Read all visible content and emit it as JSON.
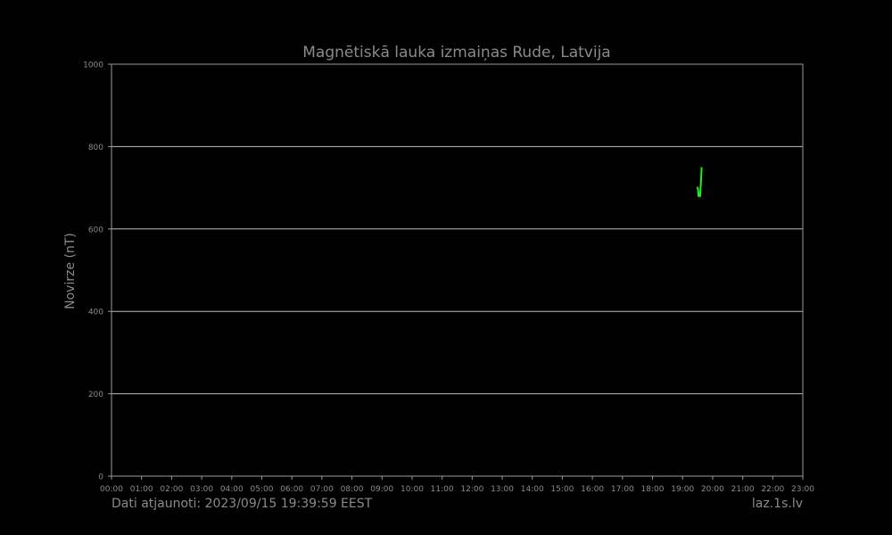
{
  "chart_data": {
    "type": "line",
    "title": "Magnētiskā lauka izmaiņas Rude, Latvija",
    "ylabel": "Novirze (nT)",
    "xlabel": "",
    "ylim": [
      0,
      1000
    ],
    "y_ticks": [
      0,
      200,
      400,
      600,
      800,
      1000
    ],
    "x_tick_labels": [
      "00:00",
      "01:00",
      "02:00",
      "03:00",
      "04:00",
      "05:00",
      "06:00",
      "07:00",
      "08:00",
      "09:00",
      "10:00",
      "11:00",
      "12:00",
      "13:00",
      "14:00",
      "15:00",
      "16:00",
      "17:00",
      "18:00",
      "19:00",
      "20:00",
      "21:00",
      "22:00",
      "23:00"
    ],
    "grid": "horizontal",
    "series": [
      {
        "color": "#22ee22",
        "x": [
          "19:28",
          "19:30",
          "19:31",
          "19:32",
          "19:32",
          "19:33",
          "19:34",
          "19:35",
          "19:36",
          "19:36",
          "19:37",
          "19:38",
          "19:39"
        ],
        "y": [
          700,
          700,
          695,
          680,
          680,
          680,
          680,
          680,
          700,
          700,
          720,
          748,
          748
        ]
      }
    ]
  },
  "footer": {
    "updated": "Dati atjaunoti: 2023/09/15 19:39:59 EEST",
    "site": "laz.1s.lv"
  }
}
